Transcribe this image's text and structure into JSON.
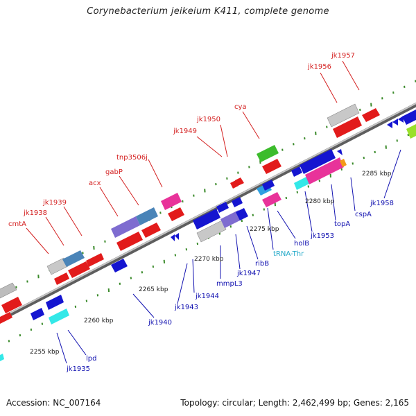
{
  "title": "Corynebacterium jeikeium K411, complete genome",
  "footer": {
    "accession": "Accession: NC_007164",
    "summary": "Topology: circular; Length: 2,462,499 bp; Genes: 2,165"
  },
  "colors": {
    "backbone": "#8a8a8a",
    "ticks": "#3a8a2a",
    "forward_label": "#d42020",
    "reverse_label": "#1010b0",
    "trna_label": "#20a8c8",
    "bp_label": "#222222"
  },
  "bp_labels": [
    {
      "text": "2255 kbp"
    },
    {
      "text": "2260 kbp"
    },
    {
      "text": "2265 kbp"
    },
    {
      "text": "2270 kbp"
    },
    {
      "text": "2275 kbp"
    },
    {
      "text": "2280 kbp"
    },
    {
      "text": "2285 kbp"
    }
  ],
  "gene_labels_top": [
    {
      "text": "cmtA"
    },
    {
      "text": "jk1938"
    },
    {
      "text": "jk1939"
    },
    {
      "text": "acx"
    },
    {
      "text": "gabP"
    },
    {
      "text": "tnp3506j"
    },
    {
      "text": "jk1949"
    },
    {
      "text": "jk1950"
    },
    {
      "text": "cya"
    },
    {
      "text": "jk1956"
    },
    {
      "text": "jk1957"
    }
  ],
  "gene_labels_bottom": [
    {
      "text": "jk1935"
    },
    {
      "text": "lpd"
    },
    {
      "text": "jk1940"
    },
    {
      "text": "jk1943"
    },
    {
      "text": "jk1944"
    },
    {
      "text": "mmpL3"
    },
    {
      "text": "jk1947"
    },
    {
      "text": "ribB"
    },
    {
      "text": "tRNA-Thr"
    },
    {
      "text": "holB"
    },
    {
      "text": "jk1953"
    },
    {
      "text": "topA"
    },
    {
      "text": "cspA"
    },
    {
      "text": "jk1958"
    }
  ]
}
